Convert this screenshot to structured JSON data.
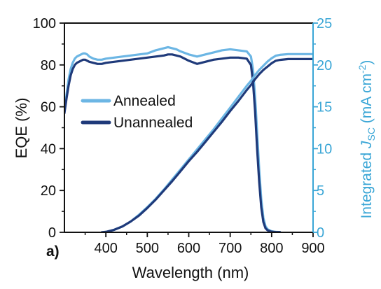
{
  "chart_data": {
    "type": "line",
    "panel_label": "a)",
    "xlabel": "Wavelength (nm)",
    "ylabel": "EQE (%)",
    "y2label": {
      "prefix": "Integrated ",
      "italic": "J",
      "subscript": "SC",
      "middle": " (mA cm",
      "superscript": "-2",
      "suffix": ")"
    },
    "xlim": [
      300,
      900
    ],
    "ylim": [
      0,
      100
    ],
    "y2lim": [
      0,
      25
    ],
    "xticks": [
      "400",
      "500",
      "600",
      "700",
      "800",
      "900"
    ],
    "yticks": [
      "0",
      "20",
      "40",
      "60",
      "80",
      "100"
    ],
    "y2ticks": [
      "0",
      "5",
      "10",
      "15",
      "20",
      "25"
    ],
    "legend_position": "middle-left",
    "colors": {
      "annealed": "#6cb6e4",
      "unannealed": "#1f3a7a",
      "right_axis": "#3aa6d6"
    },
    "series": [
      {
        "name": "Annealed",
        "axis": "left",
        "x": [
          300,
          305,
          310,
          315,
          320,
          325,
          330,
          335,
          340,
          345,
          350,
          355,
          360,
          370,
          380,
          390,
          400,
          420,
          440,
          460,
          480,
          500,
          520,
          540,
          550,
          560,
          570,
          580,
          600,
          620,
          640,
          660,
          680,
          700,
          720,
          740,
          750,
          755,
          760,
          765,
          770,
          775,
          780,
          785,
          790,
          795,
          800,
          805,
          810,
          820
        ],
        "values": [
          58,
          66,
          73,
          78,
          81,
          83,
          84,
          84.5,
          85,
          85.5,
          85.5,
          85,
          84,
          83,
          82.5,
          82.5,
          83,
          83.5,
          84,
          84.5,
          85,
          85.5,
          87,
          88,
          88.5,
          88,
          87.5,
          86.5,
          85,
          84,
          85,
          86,
          87,
          87.5,
          87,
          86.5,
          84,
          78,
          65,
          48,
          30,
          16,
          7,
          3,
          1.5,
          1,
          0.5,
          0.3,
          0.2,
          0.1
        ]
      },
      {
        "name": "Unannealed",
        "axis": "left",
        "x": [
          300,
          305,
          310,
          315,
          320,
          325,
          330,
          335,
          340,
          345,
          350,
          355,
          360,
          370,
          380,
          390,
          400,
          420,
          440,
          460,
          480,
          500,
          520,
          540,
          550,
          560,
          570,
          580,
          600,
          620,
          640,
          660,
          680,
          700,
          720,
          740,
          750,
          755,
          760,
          765,
          770,
          775,
          780,
          785,
          790,
          795,
          800,
          805,
          810,
          820
        ],
        "values": [
          57,
          64,
          70,
          75,
          78,
          80,
          81,
          81.5,
          82,
          82.5,
          82.5,
          82,
          81.5,
          81,
          80.5,
          80.5,
          81,
          81.5,
          82,
          82.5,
          83,
          83.5,
          84,
          84.5,
          85,
          85,
          84.5,
          84,
          82,
          80.5,
          81.5,
          82.5,
          83,
          83.5,
          83.5,
          83,
          80,
          72,
          58,
          40,
          24,
          12,
          5,
          2,
          1,
          0.6,
          0.3,
          0.2,
          0.1,
          0.1
        ]
      },
      {
        "name": "Annealed",
        "axis": "right",
        "x": [
          390,
          400,
          420,
          440,
          460,
          480,
          500,
          520,
          540,
          560,
          580,
          600,
          620,
          640,
          660,
          680,
          700,
          720,
          740,
          750,
          760,
          770,
          780,
          790,
          800,
          810,
          820,
          840,
          860,
          880,
          900
        ],
        "values": [
          0,
          0.05,
          0.3,
          0.7,
          1.3,
          2.1,
          3.0,
          4.0,
          5.1,
          6.3,
          7.5,
          8.7,
          9.9,
          11.1,
          12.3,
          13.6,
          14.9,
          16.2,
          17.5,
          18.1,
          18.8,
          19.4,
          19.9,
          20.4,
          20.8,
          21.1,
          21.2,
          21.3,
          21.3,
          21.3,
          21.3
        ]
      },
      {
        "name": "Unannealed",
        "axis": "right",
        "x": [
          390,
          400,
          420,
          440,
          460,
          480,
          500,
          520,
          540,
          560,
          580,
          600,
          620,
          640,
          660,
          680,
          700,
          720,
          740,
          750,
          760,
          770,
          780,
          790,
          800,
          810,
          820,
          840,
          860,
          880,
          900
        ],
        "values": [
          0,
          0.05,
          0.3,
          0.7,
          1.3,
          2.0,
          2.9,
          3.9,
          5.0,
          6.1,
          7.3,
          8.5,
          9.6,
          10.8,
          12.0,
          13.2,
          14.5,
          15.7,
          17.0,
          17.6,
          18.3,
          18.9,
          19.4,
          19.8,
          20.2,
          20.5,
          20.6,
          20.7,
          20.7,
          20.7,
          20.7
        ]
      }
    ]
  }
}
